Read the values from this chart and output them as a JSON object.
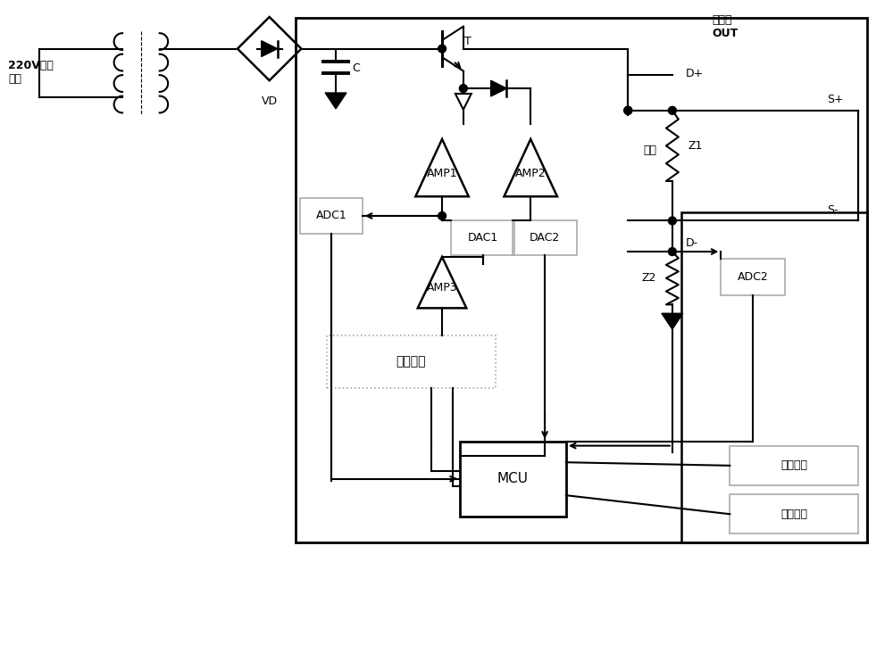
{
  "bg": "#ffffff",
  "lc": "#000000",
  "blc": "#aaaaaa",
  "figsize": [
    10.0,
    7.51
  ],
  "dpi": 100,
  "labels": {
    "input": "220V交流\n输入",
    "VD": "VD",
    "C": "C",
    "T": "T",
    "AMP1": "AMP1",
    "AMP2": "AMP2",
    "AMP3": "AMP3",
    "DAC1": "DAC1",
    "DAC2": "DAC2",
    "ADC1": "ADC1",
    "ADC2": "ADC2",
    "MCU": "MCU",
    "Z1": "Z1",
    "Z2": "Z2",
    "load": "负载",
    "rnet": "电阻网络",
    "comm": "通讯模块",
    "disp": "显示模块",
    "out": "输出端\nOUT",
    "Dp": "D+",
    "Dm": "D-",
    "Sp": "S+",
    "Sm": "S-"
  }
}
